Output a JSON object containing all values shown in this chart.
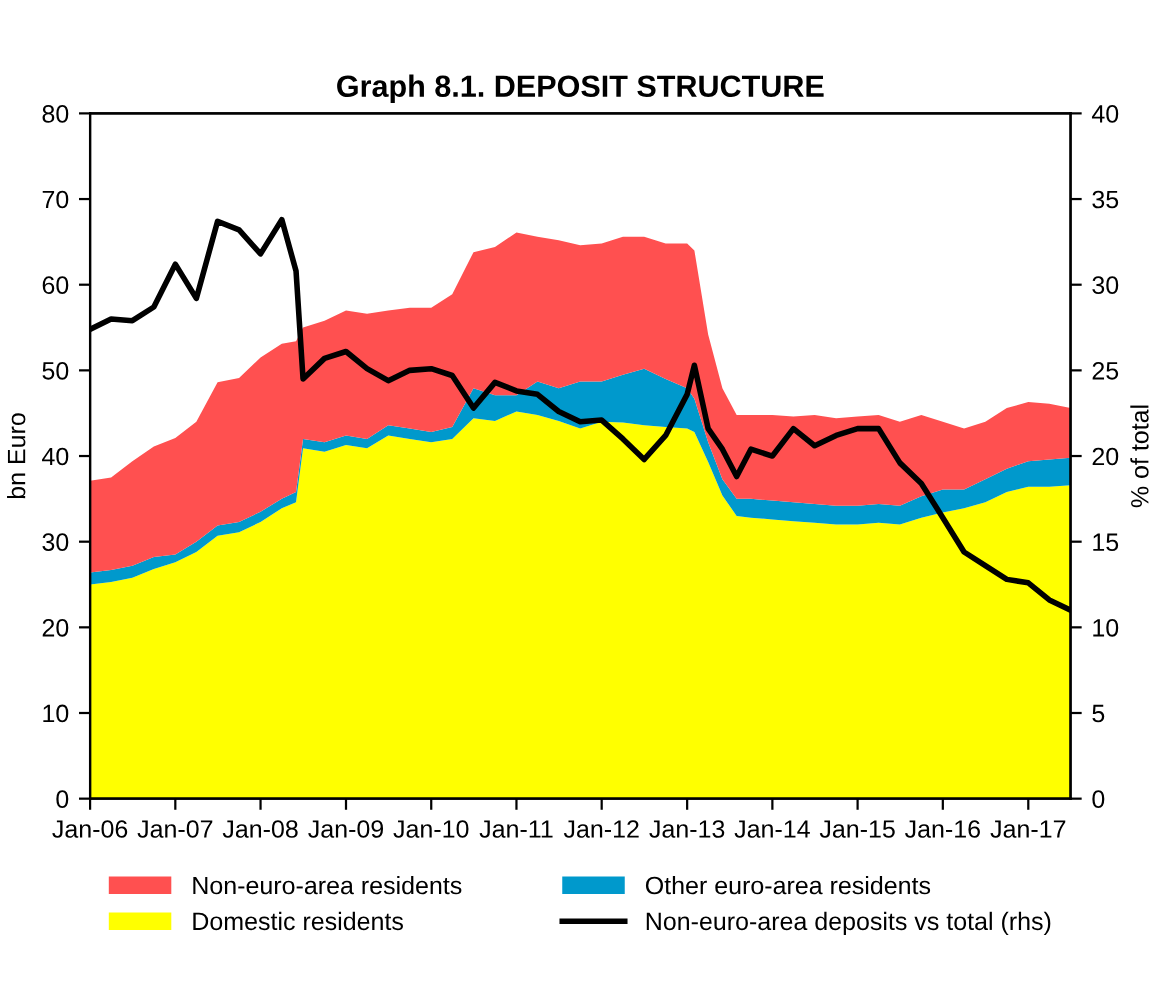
{
  "chart_data": {
    "type": "area",
    "title": "Graph 8.1. DEPOSIT STRUCTURE",
    "ylabel": "bn Euro",
    "y2label": "% of total",
    "stacked": true,
    "legend": "bottom",
    "grid": false,
    "x": [
      "2006-01",
      "2006-04",
      "2006-07",
      "2006-10",
      "2007-01",
      "2007-04",
      "2007-07",
      "2007-10",
      "2008-01",
      "2008-04",
      "2008-06",
      "2008-07",
      "2008-10",
      "2009-01",
      "2009-04",
      "2009-07",
      "2009-10",
      "2010-01",
      "2010-04",
      "2010-07",
      "2010-10",
      "2011-01",
      "2011-04",
      "2011-07",
      "2011-10",
      "2012-01",
      "2012-04",
      "2012-07",
      "2012-10",
      "2013-01",
      "2013-02",
      "2013-04",
      "2013-06",
      "2013-08",
      "2013-10",
      "2014-01",
      "2014-04",
      "2014-07",
      "2014-10",
      "2015-01",
      "2015-04",
      "2015-07",
      "2015-10",
      "2016-01",
      "2016-04",
      "2016-07",
      "2016-10",
      "2017-01",
      "2017-04",
      "2017-07"
    ],
    "series": [
      {
        "name": "Domestic residents",
        "color": "#ffff00",
        "values": [
          25.0,
          25.3,
          25.8,
          26.8,
          27.6,
          28.8,
          30.7,
          31.1,
          32.3,
          33.9,
          34.6,
          40.9,
          40.5,
          41.3,
          40.9,
          42.4,
          42.0,
          41.6,
          42.0,
          44.4,
          44.1,
          45.2,
          44.8,
          44.1,
          43.2,
          44.0,
          43.9,
          43.6,
          43.4,
          43.2,
          42.8,
          39.3,
          35.4,
          33.0,
          32.8,
          32.6,
          32.4,
          32.2,
          32.0,
          32.0,
          32.2,
          32.0,
          32.8,
          33.4,
          33.9,
          34.6,
          35.8,
          36.4,
          36.4,
          36.6
        ]
      },
      {
        "name": "Other euro-area residents",
        "color": "#0099cc",
        "values": [
          1.4,
          1.4,
          1.4,
          1.4,
          0.9,
          1.2,
          1.2,
          1.2,
          1.2,
          1.1,
          1.2,
          1.1,
          1.1,
          1.1,
          1.1,
          1.2,
          1.2,
          1.2,
          1.4,
          3.5,
          3.0,
          1.9,
          3.9,
          3.8,
          5.5,
          4.7,
          5.6,
          6.6,
          5.6,
          4.7,
          3.9,
          2.3,
          1.9,
          2.0,
          2.2,
          2.2,
          2.2,
          2.2,
          2.2,
          2.2,
          2.2,
          2.2,
          2.5,
          2.7,
          2.2,
          2.7,
          2.7,
          3.0,
          3.2,
          3.2
        ]
      },
      {
        "name": "Non-euro-area residents",
        "color": "#ff5050",
        "values": [
          10.7,
          10.8,
          12.2,
          12.9,
          13.6,
          14.0,
          16.7,
          16.8,
          18.0,
          18.1,
          17.6,
          13.0,
          14.2,
          14.6,
          14.6,
          13.4,
          14.1,
          14.5,
          15.5,
          15.9,
          17.3,
          19.0,
          16.9,
          17.3,
          15.9,
          16.1,
          16.1,
          15.4,
          15.8,
          16.9,
          17.3,
          12.6,
          10.6,
          9.8,
          9.8,
          10.0,
          10.0,
          10.4,
          10.2,
          10.4,
          10.4,
          9.8,
          9.5,
          7.9,
          7.1,
          6.7,
          7.1,
          6.9,
          6.5,
          5.8
        ]
      },
      {
        "name": "Non-euro-area deposits vs total (rhs)",
        "type": "line",
        "axis": "y2",
        "color": "#000000",
        "values": [
          27.4,
          28.0,
          27.9,
          28.7,
          31.2,
          29.2,
          33.7,
          33.2,
          31.8,
          33.8,
          30.8,
          24.5,
          25.7,
          26.1,
          25.1,
          24.4,
          25.0,
          25.1,
          24.7,
          22.8,
          24.3,
          23.8,
          23.6,
          22.6,
          22.0,
          22.1,
          21.0,
          19.8,
          21.2,
          23.6,
          25.3,
          21.6,
          20.4,
          18.8,
          20.4,
          20.0,
          21.6,
          20.6,
          21.2,
          21.6,
          21.6,
          19.6,
          18.4,
          16.4,
          14.4,
          13.6,
          12.8,
          12.6,
          11.6,
          11.0
        ]
      }
    ],
    "xlim": [
      "2006-01",
      "2017-07"
    ],
    "xticks": [
      {
        "value": "2006-01",
        "label": "Jan-06"
      },
      {
        "value": "2007-01",
        "label": "Jan-07"
      },
      {
        "value": "2008-01",
        "label": "Jan-08"
      },
      {
        "value": "2009-01",
        "label": "Jan-09"
      },
      {
        "value": "2010-01",
        "label": "Jan-10"
      },
      {
        "value": "2011-01",
        "label": "Jan-11"
      },
      {
        "value": "2012-01",
        "label": "Jan-12"
      },
      {
        "value": "2013-01",
        "label": "Jan-13"
      },
      {
        "value": "2014-01",
        "label": "Jan-14"
      },
      {
        "value": "2015-01",
        "label": "Jan-15"
      },
      {
        "value": "2016-01",
        "label": "Jan-16"
      },
      {
        "value": "2017-01",
        "label": "Jan-17"
      }
    ],
    "ylim": [
      0,
      80
    ],
    "yticks": [
      0,
      10,
      20,
      30,
      40,
      50,
      60,
      70,
      80
    ],
    "y2lim": [
      0,
      40
    ],
    "y2ticks": [
      0,
      5,
      10,
      15,
      20,
      25,
      30,
      35,
      40
    ]
  }
}
